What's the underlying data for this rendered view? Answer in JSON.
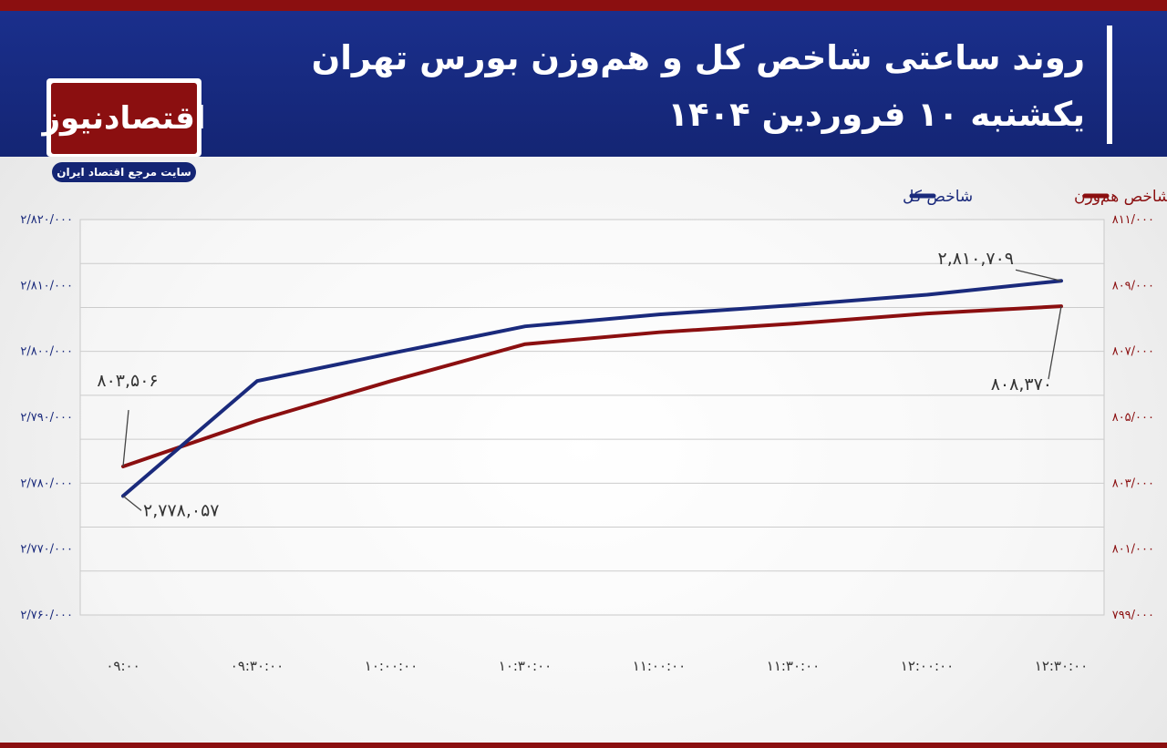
{
  "header": {
    "title": "روند ساعتی شاخص کل و هم‌وزن بورس تهران",
    "subtitle": "یکشنبه ۱۰ فروردین ۱۴۰۴"
  },
  "logo": {
    "name": "اقتصادنیوز",
    "tagline": "سایت مرجع اقتصاد ایران"
  },
  "colors": {
    "header_bg": "#142574",
    "accent": "#8b0f10",
    "series_total": "#1a2a7c",
    "series_equal": "#8b0f10"
  },
  "chart_data": {
    "type": "line",
    "x": [
      "۰۹:۰۰",
      "۰۹:۳۰:۰۰",
      "۱۰:۰۰:۰۰",
      "۱۰:۳۰:۰۰",
      "۱۱:۰۰:۰۰",
      "۱۱:۳۰:۰۰",
      "۱۲:۰۰:۰۰",
      "۱۲:۳۰:۰۰"
    ],
    "series": [
      {
        "name": "شاخص کل",
        "axis": "left",
        "color": "#1a2a7c",
        "values": [
          2778057,
          2795500,
          2799700,
          2803800,
          2805600,
          2807000,
          2808600,
          2810709
        ]
      },
      {
        "name": "شاخص هم‌وزن",
        "axis": "right",
        "color": "#8b0f10",
        "values": [
          803506,
          804900,
          806100,
          807220,
          807580,
          807840,
          808150,
          808370
        ]
      }
    ],
    "y_left": {
      "ylim": [
        2760000,
        2820000
      ],
      "tick_values": [
        2760000,
        2770000,
        2780000,
        2790000,
        2800000,
        2810000,
        2820000
      ],
      "tick_labels": [
        "۲/۷۶۰/۰۰۰",
        "۲/۷۷۰/۰۰۰",
        "۲/۷۸۰/۰۰۰",
        "۲/۷۹۰/۰۰۰",
        "۲/۸۰۰/۰۰۰",
        "۲/۸۱۰/۰۰۰",
        "۲/۸۲۰/۰۰۰"
      ]
    },
    "y_right": {
      "ylim": [
        799000,
        811000
      ],
      "tick_values": [
        799000,
        801000,
        803000,
        805000,
        807000,
        809000,
        811000
      ],
      "tick_labels": [
        "۷۹۹/۰۰۰",
        "۸۰۱/۰۰۰",
        "۸۰۳/۰۰۰",
        "۸۰۵/۰۰۰",
        "۸۰۷/۰۰۰",
        "۸۰۹/۰۰۰",
        "۸۱۱/۰۰۰"
      ]
    },
    "gridlines": 9,
    "legend_position": "top-right",
    "annotations": [
      {
        "series": 0,
        "point": 0,
        "text": "۲,۷۷۸,۰۵۷"
      },
      {
        "series": 0,
        "point": 7,
        "text": "۲,۸۱۰,۷۰۹"
      },
      {
        "series": 1,
        "point": 0,
        "text": "۸۰۳,۵۰۶"
      },
      {
        "series": 1,
        "point": 7,
        "text": "۸۰۸,۳۷۰"
      }
    ]
  }
}
